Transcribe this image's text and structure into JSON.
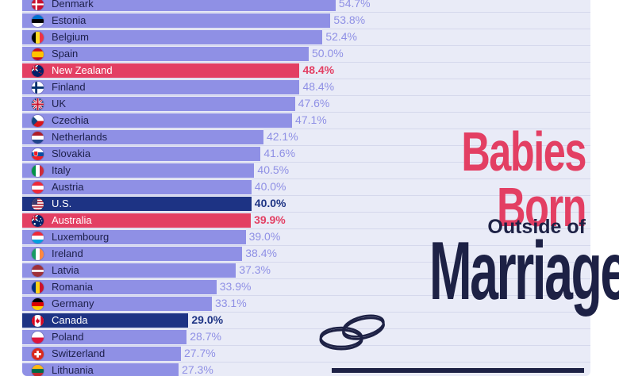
{
  "title": {
    "line1": "Babies Born",
    "line2": "Outside of",
    "line3": "Marriage"
  },
  "chart_data": {
    "type": "bar",
    "orientation": "horizontal",
    "value_unit": "%",
    "xlim": [
      0,
      100
    ],
    "categories": [
      "Denmark",
      "Estonia",
      "Belgium",
      "Spain",
      "New Zealand",
      "Finland",
      "UK",
      "Czechia",
      "Netherlands",
      "Slovakia",
      "Italy",
      "Austria",
      "U.S.",
      "Australia",
      "Luxembourg",
      "Ireland",
      "Latvia",
      "Romania",
      "Germany",
      "Canada",
      "Poland",
      "Switzerland",
      "Lithuania"
    ],
    "values": [
      54.7,
      53.8,
      52.4,
      50.0,
      48.4,
      48.4,
      47.6,
      47.1,
      42.1,
      41.6,
      40.5,
      40.0,
      40.0,
      39.9,
      39.0,
      38.4,
      37.3,
      33.9,
      33.1,
      29.0,
      28.7,
      27.7,
      27.3
    ],
    "labels": [
      "54.7%",
      "53.8%",
      "52.4%",
      "50.0%",
      "48.4%",
      "48.4%",
      "47.6%",
      "47.1%",
      "42.1%",
      "41.6%",
      "40.5%",
      "40.0%",
      "40.0%",
      "39.9%",
      "39.0%",
      "38.4%",
      "37.3%",
      "33.9%",
      "33.1%",
      "29.0%",
      "28.7%",
      "27.7%",
      "27.3%"
    ],
    "highlights": {
      "New Zealand": "red",
      "Australia": "red",
      "U.S.": "blue",
      "Canada": "blue"
    },
    "colors": {
      "bar": "#8f90e5",
      "red": "#e33f63",
      "blue": "#1d3384",
      "panel": "#e9ebf7",
      "title_red": "#e33f63",
      "title_navy": "#1d2145"
    },
    "flag_icons": [
      "denmark-flag-icon",
      "estonia-flag-icon",
      "belgium-flag-icon",
      "spain-flag-icon",
      "new-zealand-flag-icon",
      "finland-flag-icon",
      "uk-flag-icon",
      "czechia-flag-icon",
      "netherlands-flag-icon",
      "slovakia-flag-icon",
      "italy-flag-icon",
      "austria-flag-icon",
      "us-flag-icon",
      "australia-flag-icon",
      "luxembourg-flag-icon",
      "ireland-flag-icon",
      "latvia-flag-icon",
      "romania-flag-icon",
      "germany-flag-icon",
      "canada-flag-icon",
      "poland-flag-icon",
      "switzerland-flag-icon",
      "lithuania-flag-icon"
    ],
    "grid": false
  },
  "decor": {
    "rings_icon": "wedding-rings-icon"
  }
}
